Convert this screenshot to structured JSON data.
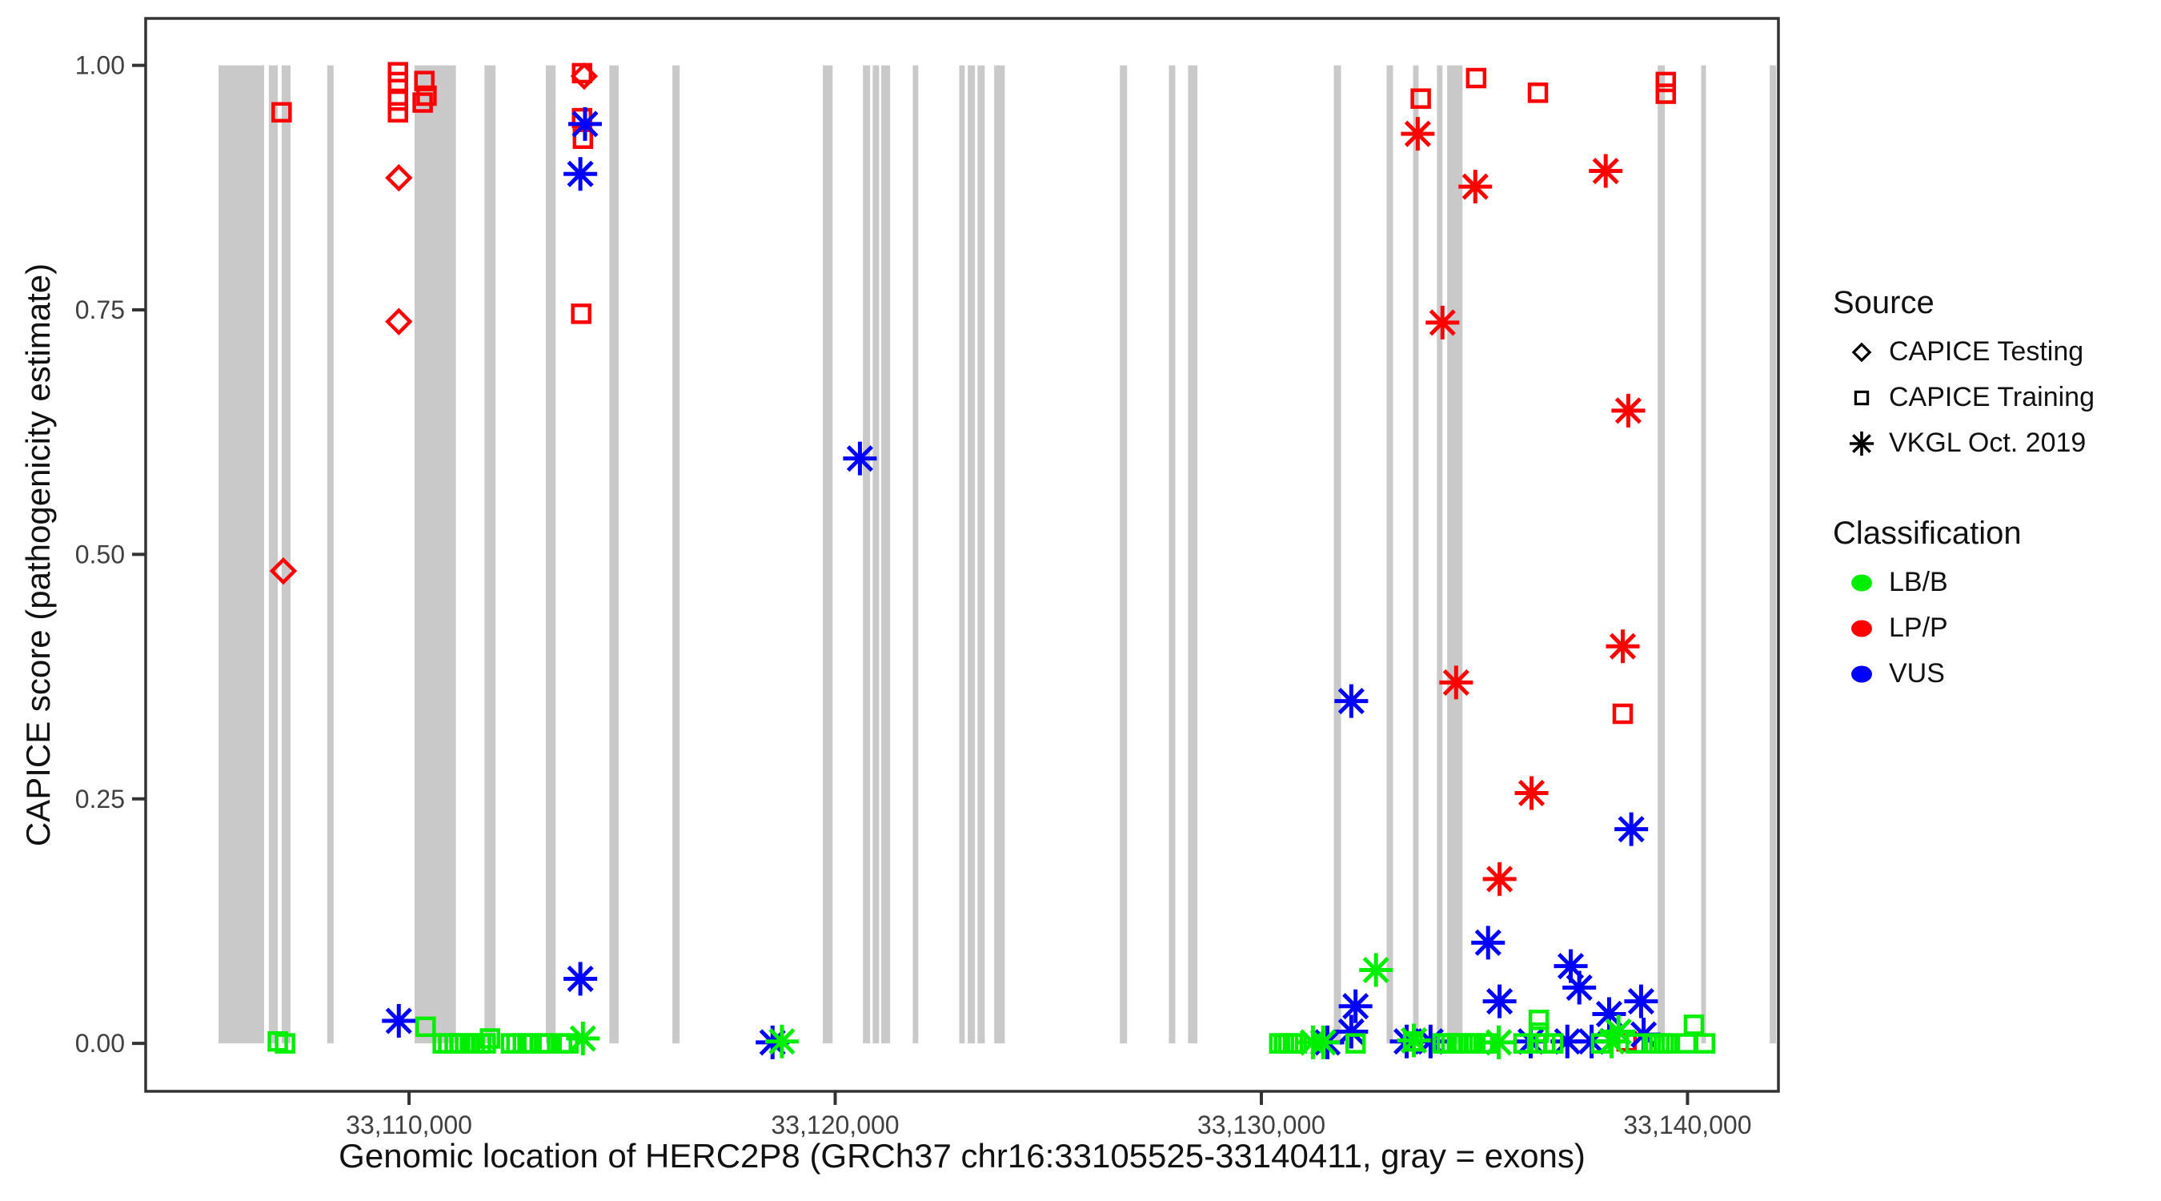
{
  "legend": {
    "source": {
      "title": "Source",
      "items": [
        {
          "label": "CAPICE Testing",
          "shape": "di"
        },
        {
          "label": "CAPICE Training",
          "shape": "sq"
        },
        {
          "label": "VKGL Oct. 2019",
          "shape": "as"
        }
      ]
    },
    "classification": {
      "title": "Classification",
      "items": [
        {
          "label": "LB/B",
          "class": "LB/B"
        },
        {
          "label": "LP/P",
          "class": "LP/P"
        },
        {
          "label": "VUS",
          "class": "VUS"
        }
      ]
    }
  },
  "chart_data": {
    "type": "scatter",
    "title": "",
    "xlabel": "Genomic location of HERC2P8 (GRCh37 chr16:33105525-33140411, gray = exons)",
    "ylabel": "CAPICE score (pathogenicity estimate)",
    "x_domain": [
      33103820,
      33142133
    ],
    "y_domain": [
      -0.049,
      1.048
    ],
    "x_ticks": [
      {
        "value": 33110000,
        "label": "33,110,000"
      },
      {
        "value": 33120000,
        "label": "33,120,000"
      },
      {
        "value": 33130000,
        "label": "33,130,000"
      },
      {
        "value": 33140000,
        "label": "33,140,000"
      }
    ],
    "y_ticks": [
      {
        "value": 0.0,
        "label": "0.00"
      },
      {
        "value": 0.25,
        "label": "0.25"
      },
      {
        "value": 0.5,
        "label": "0.50"
      },
      {
        "value": 0.75,
        "label": "0.75"
      },
      {
        "value": 1.0,
        "label": "1.00"
      }
    ],
    "colors": {
      "LB/B": "#00EE00",
      "LP/P": "#FF0000",
      "VUS": "#0000FF",
      "exon": "#C9C9C9",
      "axis": "#333333",
      "tick_text": "#404040"
    },
    "shape_meaning": {
      "di": "CAPICE Testing (diamond)",
      "sq": "CAPICE Training (square)",
      "as": "VKGL Oct. 2019 (asterisk)"
    },
    "exons": [
      [
        33105530,
        33106600
      ],
      [
        33106710,
        33106920
      ],
      [
        33107010,
        33107220
      ],
      [
        33108080,
        33108230
      ],
      [
        33110130,
        33111100
      ],
      [
        33111770,
        33112030
      ],
      [
        33113210,
        33113440
      ],
      [
        33114700,
        33114920
      ],
      [
        33116180,
        33116350
      ],
      [
        33119710,
        33119940
      ],
      [
        33120650,
        33120820
      ],
      [
        33120880,
        33121030
      ],
      [
        33121080,
        33121290
      ],
      [
        33121820,
        33121950
      ],
      [
        33122910,
        33123040
      ],
      [
        33123110,
        33123280
      ],
      [
        33123340,
        33123510
      ],
      [
        33123730,
        33123980
      ],
      [
        33126680,
        33126850
      ],
      [
        33127830,
        33127980
      ],
      [
        33128280,
        33128500
      ],
      [
        33131700,
        33131870
      ],
      [
        33132940,
        33133090
      ],
      [
        33133560,
        33133690
      ],
      [
        33134120,
        33134250
      ],
      [
        33134360,
        33134720
      ],
      [
        33139300,
        33139470
      ],
      [
        33140320,
        33140430
      ],
      [
        33141930,
        33142080
      ]
    ],
    "points": [
      [
        33107010,
        0.952,
        "sq",
        "LP/P"
      ],
      [
        33109740,
        0.993,
        "sq",
        "LP/P"
      ],
      [
        33109740,
        0.983,
        "sq",
        "LP/P"
      ],
      [
        33109740,
        0.964,
        "sq",
        "LP/P"
      ],
      [
        33109740,
        0.952,
        "sq",
        "LP/P"
      ],
      [
        33110360,
        0.984,
        "sq",
        "LP/P"
      ],
      [
        33110410,
        0.969,
        "sq",
        "LP/P"
      ],
      [
        33110320,
        0.962,
        "sq",
        "LP/P"
      ],
      [
        33114060,
        0.992,
        "sq",
        "LP/P"
      ],
      [
        33114060,
        0.946,
        "sq",
        "LP/P"
      ],
      [
        33114080,
        0.925,
        "sq",
        "LP/P"
      ],
      [
        33114040,
        0.746,
        "sq",
        "LP/P"
      ],
      [
        33133740,
        0.966,
        "sq",
        "LP/P"
      ],
      [
        33135040,
        0.987,
        "sq",
        "LP/P"
      ],
      [
        33136490,
        0.972,
        "sq",
        "LP/P"
      ],
      [
        33139490,
        0.983,
        "sq",
        "LP/P"
      ],
      [
        33139490,
        0.971,
        "sq",
        "LP/P"
      ],
      [
        33138480,
        0.337,
        "sq",
        "LP/P"
      ],
      [
        33138570,
        0.002,
        "sq",
        "LP/P"
      ],
      [
        33107050,
        0.483,
        "di",
        "LP/P"
      ],
      [
        33109760,
        0.885,
        "di",
        "LP/P"
      ],
      [
        33109760,
        0.738,
        "di",
        "LP/P"
      ],
      [
        33114110,
        0.989,
        "di",
        "LP/P"
      ],
      [
        33133670,
        0.93,
        "as",
        "LP/P"
      ],
      [
        33135020,
        0.876,
        "as",
        "LP/P"
      ],
      [
        33138080,
        0.892,
        "as",
        "LP/P"
      ],
      [
        33134250,
        0.737,
        "as",
        "LP/P"
      ],
      [
        33138610,
        0.647,
        "as",
        "LP/P"
      ],
      [
        33138480,
        0.406,
        "as",
        "LP/P"
      ],
      [
        33134570,
        0.369,
        "as",
        "LP/P"
      ],
      [
        33136340,
        0.256,
        "as",
        "LP/P"
      ],
      [
        33135590,
        0.168,
        "as",
        "LP/P"
      ],
      [
        33114130,
        0.94,
        "as",
        "VUS"
      ],
      [
        33114020,
        0.889,
        "as",
        "VUS"
      ],
      [
        33120580,
        0.598,
        "as",
        "VUS"
      ],
      [
        33132110,
        0.35,
        "as",
        "VUS"
      ],
      [
        33138680,
        0.219,
        "as",
        "VUS"
      ],
      [
        33135320,
        0.103,
        "as",
        "VUS"
      ],
      [
        33137260,
        0.079,
        "as",
        "VUS"
      ],
      [
        33114020,
        0.066,
        "as",
        "VUS"
      ],
      [
        33137460,
        0.057,
        "as",
        "VUS"
      ],
      [
        33135590,
        0.043,
        "as",
        "VUS"
      ],
      [
        33138910,
        0.043,
        "as",
        "VUS"
      ],
      [
        33132210,
        0.038,
        "as",
        "VUS"
      ],
      [
        33138160,
        0.03,
        "as",
        "VUS"
      ],
      [
        33109760,
        0.023,
        "as",
        "VUS"
      ],
      [
        33132110,
        0.012,
        "as",
        "VUS"
      ],
      [
        33138970,
        0.009,
        "as",
        "VUS"
      ],
      [
        33131550,
        0.001,
        "as",
        "VUS"
      ],
      [
        33118530,
        0.001,
        "as",
        "VUS"
      ],
      [
        33133410,
        0.002,
        "as",
        "VUS"
      ],
      [
        33133970,
        0.002,
        "as",
        "VUS"
      ],
      [
        33136320,
        0.002,
        "as",
        "VUS"
      ],
      [
        33137180,
        0.002,
        "as",
        "VUS"
      ],
      [
        33137750,
        0.002,
        "as",
        "VUS"
      ],
      [
        33106920,
        0.002,
        "sq",
        "LB/B"
      ],
      [
        33107090,
        0.0,
        "sq",
        "LB/B"
      ],
      [
        33110390,
        0.017,
        "sq",
        "LB/B"
      ],
      [
        33110790,
        0.0,
        "sq",
        "LB/B"
      ],
      [
        33110920,
        0.0,
        "sq",
        "LB/B"
      ],
      [
        33111070,
        0.0,
        "sq",
        "LB/B"
      ],
      [
        33111200,
        0.0,
        "sq",
        "LB/B"
      ],
      [
        33111320,
        0.0,
        "sq",
        "LB/B"
      ],
      [
        33111430,
        0.0,
        "sq",
        "LB/B"
      ],
      [
        33111540,
        0.0,
        "sq",
        "LB/B"
      ],
      [
        33111690,
        0.0,
        "sq",
        "LB/B"
      ],
      [
        33111800,
        0.0,
        "sq",
        "LB/B"
      ],
      [
        33111900,
        0.005,
        "sq",
        "LB/B"
      ],
      [
        33112390,
        0.0,
        "sq",
        "LB/B"
      ],
      [
        33112520,
        0.0,
        "sq",
        "LB/B"
      ],
      [
        33112670,
        0.0,
        "sq",
        "LB/B"
      ],
      [
        33112780,
        0.0,
        "sq",
        "LB/B"
      ],
      [
        33112860,
        0.0,
        "sq",
        "LB/B"
      ],
      [
        33113080,
        0.0,
        "sq",
        "LB/B"
      ],
      [
        33113170,
        0.0,
        "sq",
        "LB/B"
      ],
      [
        33113270,
        0.0,
        "sq",
        "LB/B"
      ],
      [
        33113590,
        0.0,
        "sq",
        "LB/B"
      ],
      [
        33113740,
        0.0,
        "sq",
        "LB/B"
      ],
      [
        33130420,
        0.0,
        "sq",
        "LB/B"
      ],
      [
        33130530,
        0.0,
        "sq",
        "LB/B"
      ],
      [
        33130630,
        0.0,
        "sq",
        "LB/B"
      ],
      [
        33130740,
        0.0,
        "sq",
        "LB/B"
      ],
      [
        33130830,
        0.0,
        "sq",
        "LB/B"
      ],
      [
        33132210,
        0.0,
        "sq",
        "LB/B"
      ],
      [
        33133560,
        0.002,
        "sq",
        "LB/B"
      ],
      [
        33134250,
        0.0,
        "sq",
        "LB/B"
      ],
      [
        33134350,
        0.0,
        "sq",
        "LB/B"
      ],
      [
        33134460,
        0.0,
        "sq",
        "LB/B"
      ],
      [
        33134590,
        0.0,
        "sq",
        "LB/B"
      ],
      [
        33134720,
        0.0,
        "sq",
        "LB/B"
      ],
      [
        33134890,
        0.0,
        "sq",
        "LB/B"
      ],
      [
        33134980,
        0.0,
        "sq",
        "LB/B"
      ],
      [
        33135210,
        0.0,
        "sq",
        "LB/B"
      ],
      [
        33135020,
        0.0,
        "sq",
        "LB/B"
      ],
      [
        33135300,
        0.0,
        "sq",
        "LB/B"
      ],
      [
        33136150,
        0.0,
        "sq",
        "LB/B"
      ],
      [
        33136470,
        0.0,
        "sq",
        "LB/B"
      ],
      [
        33136660,
        0.0,
        "sq",
        "LB/B"
      ],
      [
        33136850,
        0.0,
        "sq",
        "LB/B"
      ],
      [
        33136510,
        0.024,
        "sq",
        "LB/B"
      ],
      [
        33136510,
        0.011,
        "sq",
        "LB/B"
      ],
      [
        33137970,
        0.0,
        "sq",
        "LB/B"
      ],
      [
        33138780,
        0.0,
        "sq",
        "LB/B"
      ],
      [
        33139230,
        0.0,
        "sq",
        "LB/B"
      ],
      [
        33139340,
        0.0,
        "sq",
        "LB/B"
      ],
      [
        33139440,
        0.0,
        "sq",
        "LB/B"
      ],
      [
        33139530,
        0.0,
        "sq",
        "LB/B"
      ],
      [
        33139980,
        0.0,
        "sq",
        "LB/B"
      ],
      [
        33140150,
        0.019,
        "sq",
        "LB/B"
      ],
      [
        33140410,
        0.0,
        "sq",
        "LB/B"
      ],
      [
        33114080,
        0.005,
        "as",
        "LB/B"
      ],
      [
        33118750,
        0.002,
        "as",
        "LB/B"
      ],
      [
        33131210,
        0.001,
        "as",
        "LB/B"
      ],
      [
        33131450,
        0.001,
        "as",
        "LB/B"
      ],
      [
        33132690,
        0.075,
        "as",
        "LB/B"
      ],
      [
        33133580,
        0.003,
        "as",
        "LB/B"
      ],
      [
        33135570,
        0.001,
        "as",
        "LB/B"
      ],
      [
        33138380,
        0.012,
        "as",
        "LB/B"
      ],
      [
        33138220,
        0.002,
        "as",
        "LB/B"
      ]
    ]
  }
}
